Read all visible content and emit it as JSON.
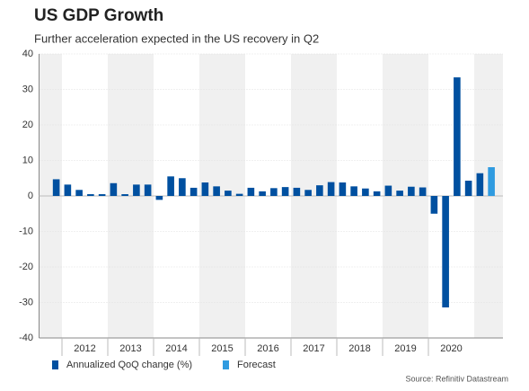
{
  "chart_data": {
    "type": "bar",
    "title": "US GDP Growth",
    "subtitle": "Further acceleration expected in the US recovery in Q2",
    "source": "Source: Refinitiv Datastream",
    "x_labels": [
      "2012",
      "2013",
      "2014",
      "2015",
      "2016",
      "2017",
      "2018",
      "2019",
      "2020"
    ],
    "series": [
      {
        "name": "Annualized QoQ change (%)",
        "color": "#0050a0",
        "values": [
          0.0,
          4.7,
          3.2,
          1.7,
          0.5,
          0.5,
          3.6,
          0.5,
          3.2,
          3.2,
          -1.1,
          5.5,
          5.0,
          2.3,
          3.8,
          2.7,
          1.5,
          0.6,
          2.3,
          1.3,
          2.2,
          2.5,
          2.3,
          1.7,
          3.0,
          3.9,
          3.8,
          2.7,
          2.1,
          1.3,
          2.9,
          1.5,
          2.6,
          2.4,
          -5.0,
          -31.4,
          33.4,
          4.3,
          6.4,
          null
        ]
      },
      {
        "name": "Forecast",
        "color": "#2f9be0",
        "values": [
          null,
          null,
          null,
          null,
          null,
          null,
          null,
          null,
          null,
          null,
          null,
          null,
          null,
          null,
          null,
          null,
          null,
          null,
          null,
          null,
          null,
          null,
          null,
          null,
          null,
          null,
          null,
          null,
          null,
          null,
          null,
          null,
          null,
          null,
          null,
          null,
          null,
          null,
          null,
          8.1
        ]
      }
    ],
    "ylim": [
      -40,
      40
    ],
    "yticks": [
      -40,
      -30,
      -20,
      -10,
      0,
      10,
      20,
      30,
      40
    ],
    "grid": true
  }
}
